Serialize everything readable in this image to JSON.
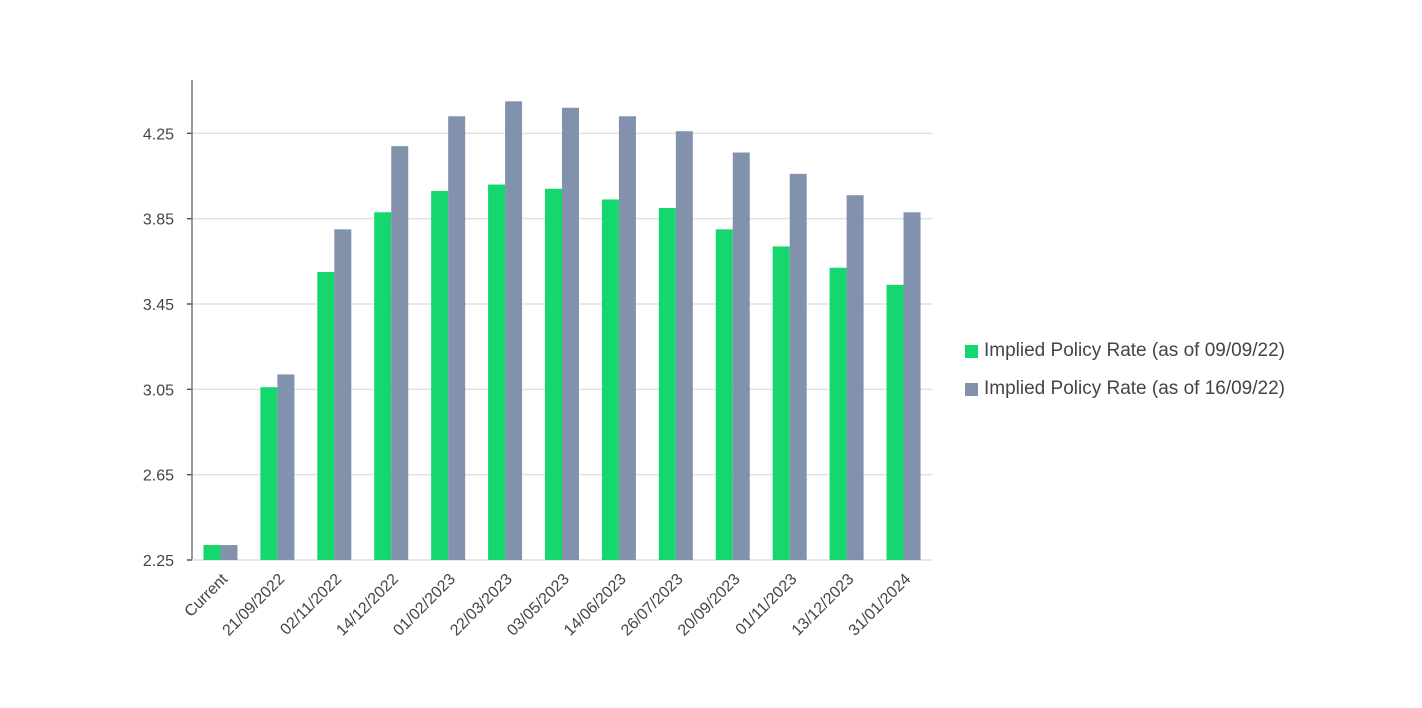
{
  "chart_data": {
    "type": "bar",
    "title": "",
    "xlabel": "",
    "ylabel": "",
    "ylim": [
      2.25,
      4.5
    ],
    "yticks": [
      "2.25",
      "2.65",
      "3.05",
      "3.45",
      "3.85",
      "4.25"
    ],
    "grid": true,
    "legend_position": "right",
    "categories": [
      "Current",
      "21/09/2022",
      "02/11/2022",
      "14/12/2022",
      "01/02/2023",
      "22/03/2023",
      "03/05/2023",
      "14/06/2023",
      "26/07/2023",
      "20/09/2023",
      "01/11/2023",
      "13/12/2023",
      "31/01/2024"
    ],
    "series": [
      {
        "name": "Implied Policy Rate (as of 09/09/22)",
        "color": "#16d66e",
        "values": [
          2.32,
          3.06,
          3.6,
          3.88,
          3.98,
          4.01,
          3.99,
          3.94,
          3.9,
          3.8,
          3.72,
          3.62,
          3.54
        ]
      },
      {
        "name": "Implied Policy Rate (as of 16/09/22)",
        "color": "#8292ad",
        "values": [
          2.32,
          3.12,
          3.8,
          4.19,
          4.33,
          4.4,
          4.37,
          4.33,
          4.26,
          4.16,
          4.06,
          3.96,
          3.88
        ]
      }
    ]
  }
}
